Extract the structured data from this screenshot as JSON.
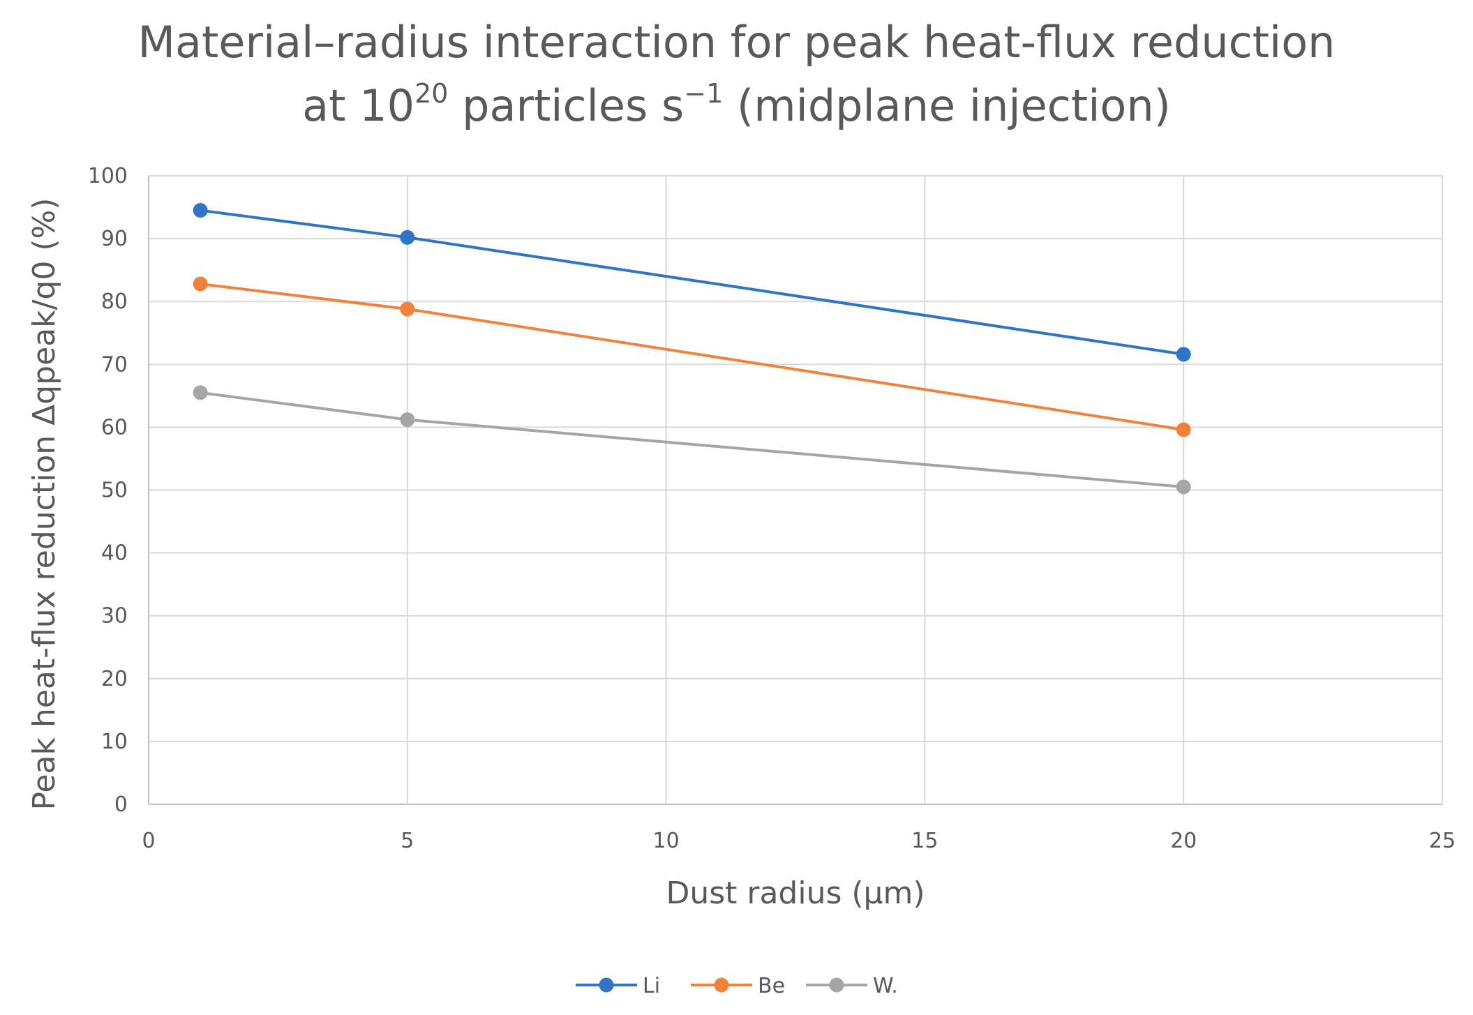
{
  "chart_data": {
    "type": "line",
    "title_line1": "Material–radius interaction for peak heat-flux reduction",
    "title_line2_pre": "at 10",
    "title_line2_sup1": "20",
    "title_line2_mid": " particles s",
    "title_line2_sup2": "−1",
    "title_line2_post": " (midplane injection)",
    "xlabel": "Dust radius (µm)",
    "ylabel": "Peak heat-flux reduction Δqpeak/q0 (%)",
    "xlim": [
      0,
      25
    ],
    "ylim": [
      0,
      100
    ],
    "xticks": [
      "0",
      "5",
      "10",
      "15",
      "20",
      "25"
    ],
    "yticks": [
      "0",
      "10",
      "20",
      "30",
      "40",
      "50",
      "60",
      "70",
      "80",
      "90",
      "100"
    ],
    "grid": true,
    "legend_position": "bottom-center",
    "x": [
      1,
      5,
      20
    ],
    "series": [
      {
        "name": "Li",
        "color": "#2e75c6",
        "values": [
          94.5,
          90.2,
          71.6
        ]
      },
      {
        "name": "Be",
        "color": "#f28239",
        "values": [
          82.8,
          78.8,
          59.6
        ]
      },
      {
        "name": "W.",
        "color": "#a5a5a5",
        "values": [
          65.5,
          61.2,
          50.5
        ]
      }
    ]
  }
}
